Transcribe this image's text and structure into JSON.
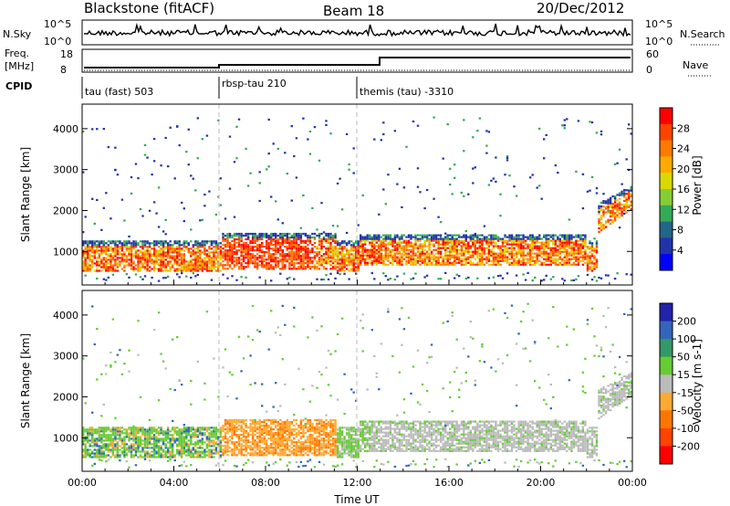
{
  "header": {
    "site": "Blackstone (fitACF)",
    "beam": "Beam 18",
    "date": "20/Dec/2012"
  },
  "strips": {
    "nsky_label": "N.Sky",
    "nsky_ticks": [
      "10^5",
      "10^0"
    ],
    "nsearch_label": "N.Search",
    "nsearch_ticks": [
      "10^5",
      "10^0"
    ],
    "freq_label_line1": "Freq.",
    "freq_label_line2": "[MHz]",
    "freq_ticks": [
      "18",
      "8"
    ],
    "nave_label": "Nave",
    "nave_ticks": [
      "60",
      "0"
    ],
    "cpid_label": "CPID",
    "cpid_segments": [
      {
        "label": "tau (fast) 503",
        "start_hour": 0
      },
      {
        "label": "rbsp-tau 210",
        "start_hour": 6
      },
      {
        "label": "themis (tau) -3310",
        "start_hour": 12
      }
    ]
  },
  "chart_data": [
    {
      "type": "heatmap",
      "name": "Power",
      "ylabel": "Slant Range [km]",
      "x_range_hours": [
        0,
        24
      ],
      "ylim_km": [
        180,
        4600
      ],
      "y_ticks": [
        1000,
        2000,
        3000,
        4000
      ],
      "colorbar_label": "Power [dB]",
      "colorbar_ticks": [
        "28",
        "24",
        "20",
        "16",
        "12",
        "8",
        "4"
      ],
      "colorbar_colors": [
        "#ff0000",
        "#ff4400",
        "#ff7a00",
        "#ffaa00",
        "#d9d900",
        "#88cc33",
        "#33aa55",
        "#226688",
        "#2233aa",
        "#0000ff"
      ]
    },
    {
      "type": "heatmap",
      "name": "Velocity",
      "ylabel": "Slant Range [km]",
      "x_range_hours": [
        0,
        24
      ],
      "ylim_km": [
        180,
        4600
      ],
      "y_ticks": [
        1000,
        2000,
        3000,
        4000
      ],
      "x_ticks": [
        "00:00",
        "04:00",
        "08:00",
        "12:00",
        "16:00",
        "20:00",
        "00:00"
      ],
      "xlabel": "Time UT",
      "colorbar_label": "Velocity [m s-1]",
      "colorbar_ticks": [
        "200",
        "100",
        "50",
        "15",
        "-15",
        "-50",
        "-100",
        "-200"
      ],
      "colorbar_colors": [
        "#2222aa",
        "#3366bb",
        "#339966",
        "#66cc33",
        "#bbbbbb",
        "#ffaa33",
        "#ff7700",
        "#ff4400",
        "#ff0000"
      ]
    }
  ]
}
